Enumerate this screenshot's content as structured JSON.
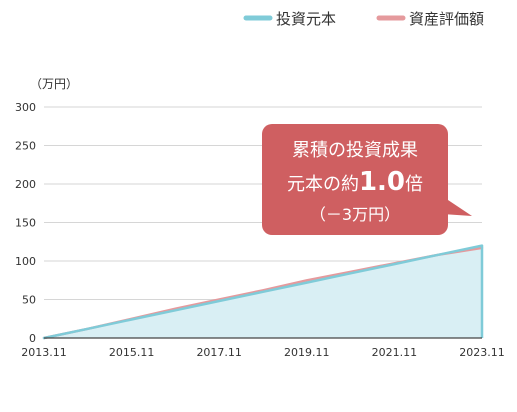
{
  "chart_data": {
    "type": "area",
    "ylabel": "（万円）",
    "ylim": [
      0,
      300
    ],
    "yticks": [
      0,
      50,
      100,
      150,
      200,
      250,
      300
    ],
    "xlim": [
      "2013.11",
      "2023.11"
    ],
    "xticks": [
      "2013.11",
      "2015.11",
      "2017.11",
      "2019.11",
      "2021.11",
      "2023.11"
    ],
    "grid": true,
    "legend_position": "top-right",
    "series": [
      {
        "name": "投資元本",
        "color": "#7fcbd8",
        "fill": "#d9eff4",
        "x": [
          "2013.11",
          "2014.11",
          "2015.11",
          "2016.11",
          "2017.11",
          "2018.11",
          "2019.11",
          "2020.11",
          "2021.11",
          "2022.11",
          "2023.11"
        ],
        "values": [
          0,
          12,
          24,
          36,
          48,
          60,
          72,
          84,
          96,
          108,
          120
        ]
      },
      {
        "name": "資産評価額",
        "color": "#e59a9d",
        "x": [
          "2013.11",
          "2014.11",
          "2015.11",
          "2016.11",
          "2017.11",
          "2018.11",
          "2019.11",
          "2020.11",
          "2021.11",
          "2022.11",
          "2023.11"
        ],
        "values": [
          0,
          12,
          25,
          38,
          50,
          62,
          75,
          86,
          97,
          108,
          117
        ]
      }
    ],
    "annotation": {
      "line1": "累積の投資成果",
      "line2_prefix": "元本の約",
      "line2_value": "1.0",
      "line2_suffix": "倍",
      "line3": "（－3万円）",
      "background_color": "#cf5f61"
    }
  }
}
